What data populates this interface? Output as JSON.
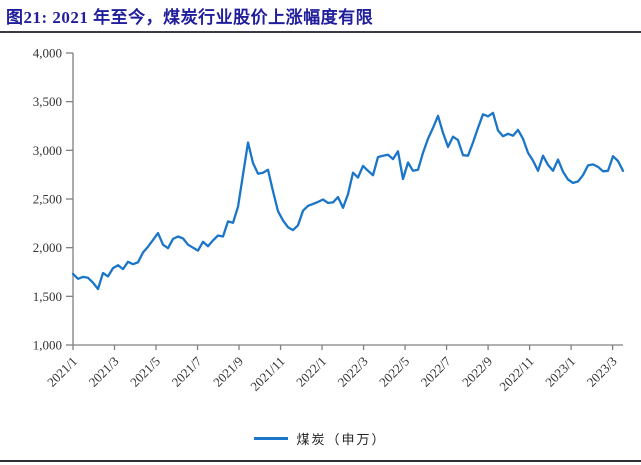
{
  "figure": {
    "title": "图21: 2021 年至今，煤炭行业股价上涨幅度有限",
    "title_color": "#211e9b"
  },
  "chart_data": {
    "type": "line",
    "title": "2021 年至今，煤炭行业股价上涨幅度有限",
    "legend_position": "bottom",
    "grid": false,
    "axis_color": "#808080",
    "x_label_rotation": -45,
    "x_start": "2021/1",
    "x_end": "2023/3",
    "months_span": 26.5,
    "x_tick_labels": [
      "2021/1",
      "2021/3",
      "2021/5",
      "2021/7",
      "2021/9",
      "2021/11",
      "2022/1",
      "2022/3",
      "2022/5",
      "2022/7",
      "2022/9",
      "2022/11",
      "2023/1",
      "2023/3"
    ],
    "ylim": [
      1000,
      4000
    ],
    "y_tick_values": [
      1000,
      1500,
      2000,
      2500,
      3000,
      3500,
      4000
    ],
    "y_tick_labels": [
      "1,000",
      "1,500",
      "2,000",
      "2,500",
      "3,000",
      "3,500",
      "4,000"
    ],
    "series": [
      {
        "name": "煤炭（申万）",
        "color": "#1b75c8",
        "frequency": "weekly",
        "values": [
          1730,
          1680,
          1700,
          1690,
          1640,
          1575,
          1740,
          1705,
          1790,
          1820,
          1780,
          1855,
          1830,
          1850,
          1950,
          2010,
          2080,
          2150,
          2030,
          1995,
          2090,
          2115,
          2095,
          2030,
          2000,
          1970,
          2060,
          2015,
          2075,
          2125,
          2115,
          2270,
          2255,
          2420,
          2750,
          3080,
          2870,
          2760,
          2770,
          2800,
          2580,
          2375,
          2280,
          2210,
          2180,
          2230,
          2380,
          2430,
          2450,
          2470,
          2495,
          2460,
          2465,
          2520,
          2410,
          2550,
          2770,
          2720,
          2840,
          2790,
          2745,
          2930,
          2945,
          2955,
          2910,
          2990,
          2705,
          2875,
          2790,
          2800,
          2975,
          3120,
          3230,
          3355,
          3180,
          3035,
          3140,
          3105,
          2950,
          2945,
          3080,
          3230,
          3370,
          3350,
          3385,
          3205,
          3145,
          3170,
          3150,
          3210,
          3120,
          2975,
          2895,
          2790,
          2945,
          2850,
          2790,
          2905,
          2780,
          2700,
          2665,
          2680,
          2745,
          2845,
          2855,
          2830,
          2785,
          2790,
          2940,
          2890,
          2790
        ]
      }
    ]
  }
}
